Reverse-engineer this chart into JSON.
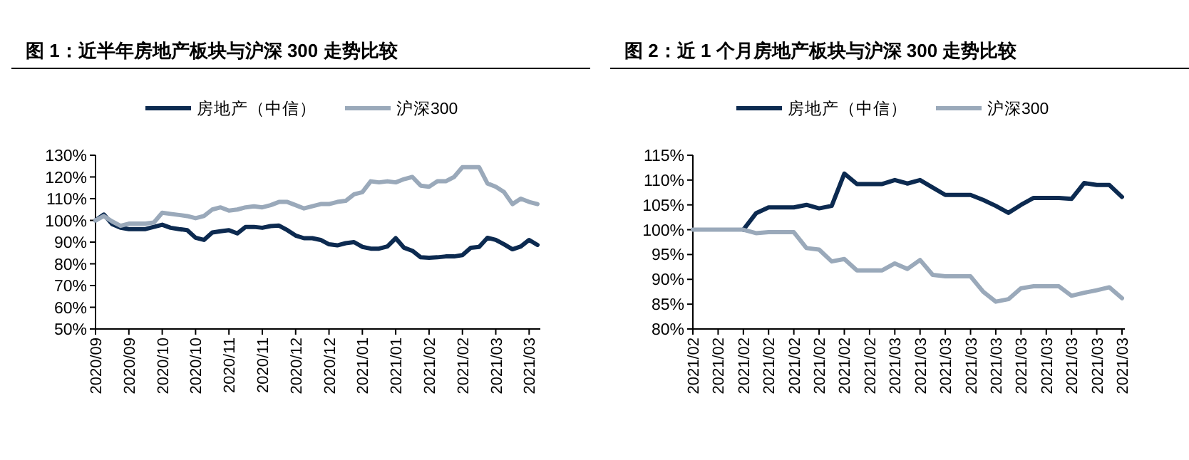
{
  "chart_data": [
    {
      "type": "line",
      "title": "图 1：近半年房地产板块与沪深 300 走势比较",
      "legend": "top",
      "grid": false,
      "marker": "none",
      "line_style": "solid",
      "categories": [
        "2020/09",
        null,
        null,
        null,
        "2020/09",
        null,
        null,
        null,
        "2020/10",
        null,
        null,
        null,
        "2020/10",
        null,
        null,
        null,
        "2020/11",
        null,
        null,
        null,
        "2020/11",
        null,
        null,
        null,
        "2020/12",
        null,
        null,
        null,
        "2020/12",
        null,
        null,
        null,
        "2021/01",
        null,
        null,
        null,
        "2021/01",
        null,
        null,
        null,
        "2021/02",
        null,
        null,
        null,
        "2021/02",
        null,
        null,
        null,
        "2021/03",
        null,
        null,
        null,
        "2021/03",
        null
      ],
      "ylim": [
        50,
        130
      ],
      "yticks": [
        {
          "value": 50,
          "label": "50%"
        },
        {
          "value": 60,
          "label": "60%"
        },
        {
          "value": 70,
          "label": "70%"
        },
        {
          "value": 80,
          "label": "80%"
        },
        {
          "value": 90,
          "label": "90%"
        },
        {
          "value": 100,
          "label": "100%"
        },
        {
          "value": 110,
          "label": "110%"
        },
        {
          "value": 120,
          "label": "120%"
        },
        {
          "value": 130,
          "label": "130%"
        }
      ],
      "series": [
        {
          "name": "房地产（中信）",
          "color": "#0c2a50",
          "values": [
            100,
            102.7,
            98.3,
            96.6,
            96,
            96,
            96,
            97,
            98,
            96.6,
            96,
            95.5,
            92,
            91,
            94.4,
            95,
            95.5,
            94,
            97,
            97,
            96.6,
            97.4,
            97.6,
            95.5,
            93,
            91.8,
            91.8,
            91,
            89,
            88.5,
            89.5,
            90,
            87.8,
            87,
            87,
            88,
            91.8,
            87.4,
            86,
            83,
            82.8,
            83,
            83.4,
            83.4,
            84,
            87.4,
            87.8,
            92,
            91,
            89,
            86.7,
            88,
            91,
            88.7
          ]
        },
        {
          "name": "沪深300",
          "color": "#9aa9ba",
          "values": [
            100,
            102,
            99.5,
            97.5,
            98.5,
            98.5,
            98.5,
            99,
            103.5,
            103,
            102.5,
            102,
            101,
            102,
            105,
            106,
            104.5,
            105,
            106,
            106.5,
            106,
            107,
            108.5,
            108.5,
            107,
            105.5,
            106.5,
            107.5,
            107.5,
            108.5,
            109,
            112,
            113,
            118,
            117.5,
            118,
            117.5,
            119,
            120,
            116,
            115.5,
            118,
            118,
            120,
            124.5,
            124.5,
            124.5,
            117,
            115.5,
            113,
            107.5,
            110,
            108.5,
            107.5
          ]
        }
      ]
    },
    {
      "type": "line",
      "title": "图 2：近 1 个月房地产板块与沪深 300 走势比较",
      "legend": "top",
      "grid": false,
      "marker": "none",
      "line_style": "solid",
      "categories": [
        "2021/02",
        null,
        "2021/02",
        null,
        "2021/02",
        null,
        "2021/02",
        null,
        "2021/02",
        null,
        "2021/02",
        null,
        "2021/02",
        null,
        "2021/02",
        null,
        "2021/03",
        null,
        "2021/03",
        null,
        "2021/03",
        null,
        "2021/03",
        null,
        "2021/03",
        null,
        "2021/03",
        null,
        "2021/03",
        null,
        "2021/03",
        null,
        "2021/03",
        null,
        "2021/03"
      ],
      "ylim": [
        80,
        115
      ],
      "yticks": [
        {
          "value": 80,
          "label": "80%"
        },
        {
          "value": 85,
          "label": "85%"
        },
        {
          "value": 90,
          "label": "90%"
        },
        {
          "value": 95,
          "label": "95%"
        },
        {
          "value": 100,
          "label": "100%"
        },
        {
          "value": 105,
          "label": "105%"
        },
        {
          "value": 110,
          "label": "110%"
        },
        {
          "value": 115,
          "label": "115%"
        }
      ],
      "series": [
        {
          "name": "房地产（中信）",
          "color": "#0c2a50",
          "values": [
            null,
            null,
            null,
            null,
            100,
            103.3,
            104.5,
            104.5,
            104.5,
            105,
            104.3,
            104.8,
            111.3,
            109.2,
            109.2,
            109.2,
            110,
            109.3,
            110,
            108.5,
            107,
            107,
            107,
            106,
            104.8,
            103.4,
            105,
            106.4,
            106.4,
            106.4,
            106.2,
            109.4,
            109,
            109,
            106.6
          ]
        },
        {
          "name": "沪深300",
          "color": "#9aa9ba",
          "values": [
            100,
            100,
            100,
            100,
            100,
            99.3,
            99.5,
            99.5,
            99.5,
            96.3,
            96,
            93.6,
            94.1,
            91.8,
            91.8,
            91.8,
            93.2,
            92.1,
            93.9,
            90.9,
            90.6,
            90.6,
            90.6,
            87.5,
            85.5,
            86,
            88.2,
            88.6,
            88.6,
            88.6,
            86.7,
            87.3,
            87.8,
            88.4,
            86.2
          ]
        }
      ]
    }
  ]
}
